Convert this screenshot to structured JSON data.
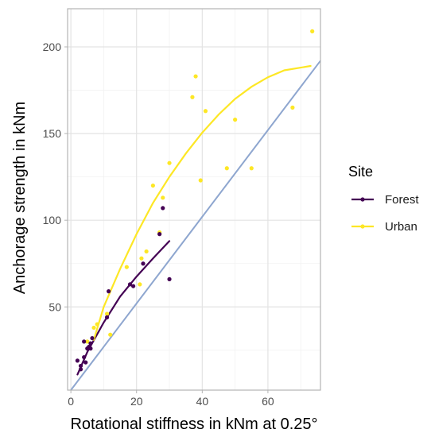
{
  "chart_data": {
    "type": "scatter",
    "xlabel": "Rotational stiffness in kNm at 0.25°",
    "ylabel": "Anchorage strength in kNm",
    "xlim": [
      -1,
      76
    ],
    "ylim": [
      2,
      222
    ],
    "x_ticks": [
      0,
      20,
      40,
      60
    ],
    "y_ticks": [
      50,
      100,
      150,
      200
    ],
    "grid": true,
    "legend": {
      "title": "Site",
      "placement": "right"
    },
    "reference_line": {
      "color": "#8ea6cf",
      "points": [
        [
          0,
          2
        ],
        [
          76,
          192
        ]
      ]
    },
    "series": [
      {
        "name": "Forest",
        "color": "#440154",
        "points": [
          [
            2,
            19
          ],
          [
            3,
            14
          ],
          [
            3,
            16
          ],
          [
            4,
            30
          ],
          [
            4,
            21
          ],
          [
            4.5,
            18
          ],
          [
            5,
            26
          ],
          [
            5.5,
            27
          ],
          [
            6,
            26
          ],
          [
            6,
            29
          ],
          [
            6.5,
            32
          ],
          [
            11,
            44
          ],
          [
            11.5,
            59
          ],
          [
            18,
            63
          ],
          [
            19,
            62
          ],
          [
            22,
            75
          ],
          [
            27,
            92
          ],
          [
            28,
            107
          ],
          [
            30,
            66
          ]
        ],
        "fit": [
          [
            2,
            11
          ],
          [
            5,
            24
          ],
          [
            10,
            41
          ],
          [
            15,
            56
          ],
          [
            20,
            67.5
          ],
          [
            25,
            78
          ],
          [
            30,
            88
          ]
        ]
      },
      {
        "name": "Urban",
        "color": "#fde725",
        "points": [
          [
            5,
            30
          ],
          [
            7,
            38
          ],
          [
            8,
            40
          ],
          [
            11,
            46
          ],
          [
            12,
            34
          ],
          [
            17,
            73
          ],
          [
            21,
            63
          ],
          [
            21.5,
            78
          ],
          [
            23,
            82
          ],
          [
            25,
            120
          ],
          [
            27,
            93
          ],
          [
            28,
            113
          ],
          [
            30,
            133
          ],
          [
            37,
            171
          ],
          [
            38,
            183
          ],
          [
            39.5,
            123
          ],
          [
            41,
            163
          ],
          [
            47.5,
            130
          ],
          [
            50,
            158
          ],
          [
            55,
            130
          ],
          [
            67.5,
            165
          ],
          [
            73.5,
            209
          ]
        ],
        "fit": [
          [
            7,
            31
          ],
          [
            10,
            50
          ],
          [
            15,
            72
          ],
          [
            20,
            92
          ],
          [
            25,
            110
          ],
          [
            30,
            125
          ],
          [
            35,
            138.5
          ],
          [
            40,
            150.5
          ],
          [
            45,
            161
          ],
          [
            50,
            170
          ],
          [
            55,
            177
          ],
          [
            60,
            182.5
          ],
          [
            65,
            186.5
          ],
          [
            73,
            189
          ]
        ]
      }
    ]
  }
}
